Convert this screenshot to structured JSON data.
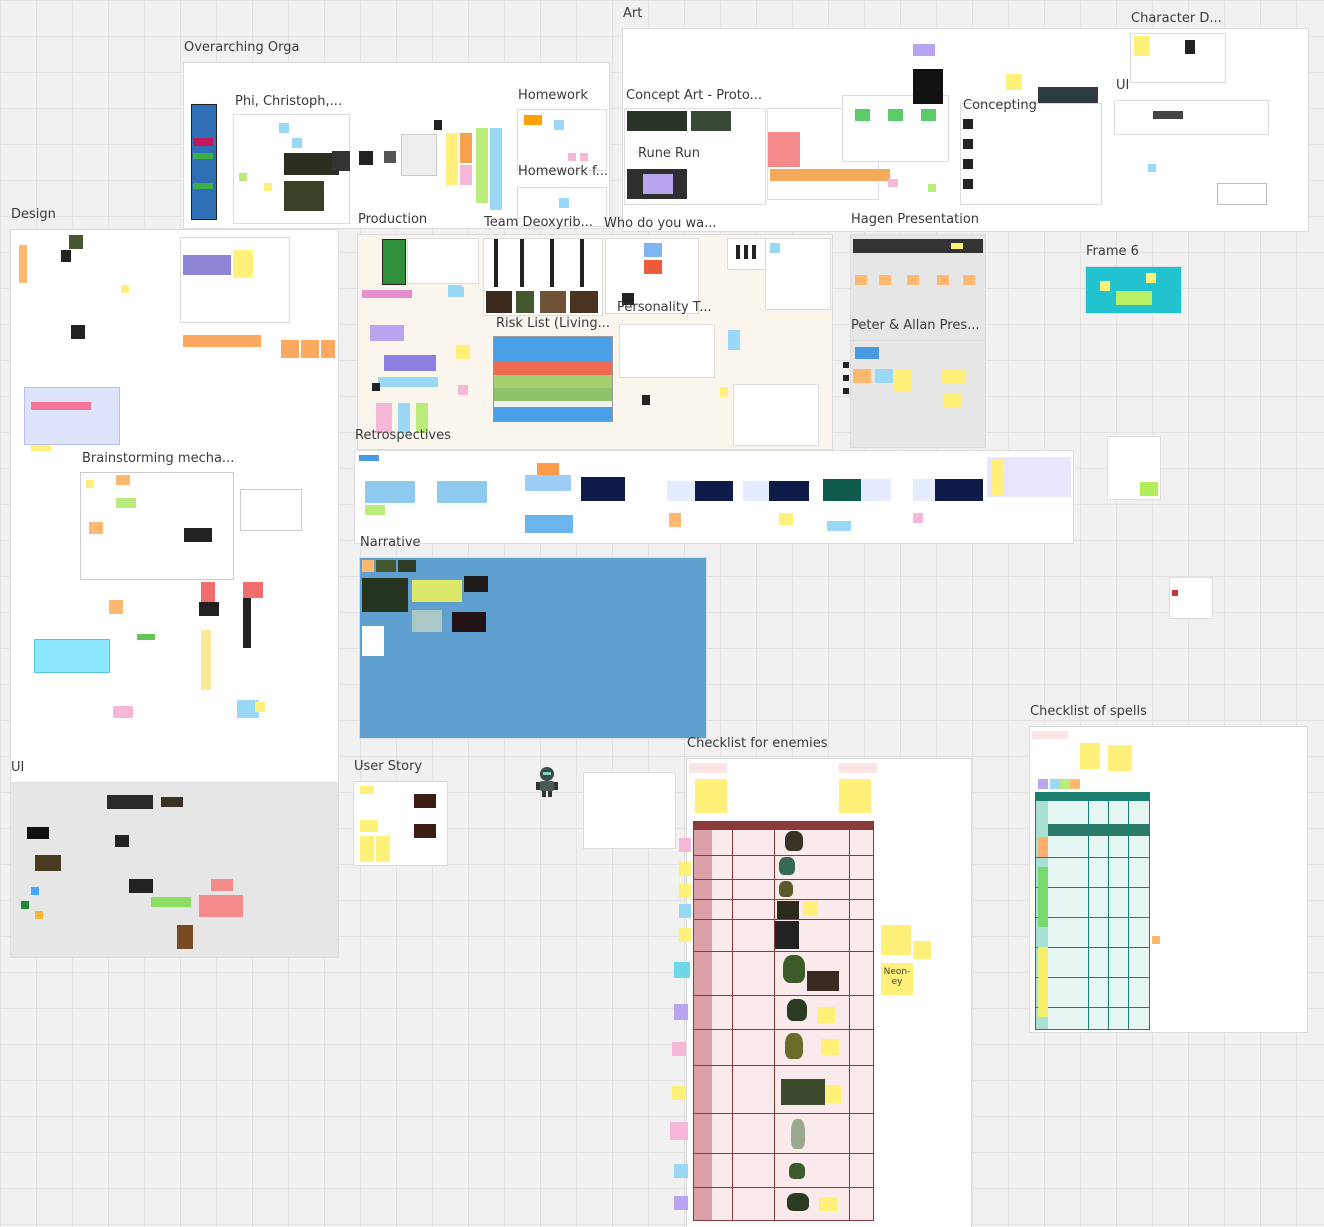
{
  "board": {
    "frames": [
      {
        "id": "overarching",
        "label": "Overarching Orga"
      },
      {
        "id": "art",
        "label": "Art"
      },
      {
        "id": "character",
        "label": "Character D..."
      },
      {
        "id": "phi",
        "label": "Phi, Christoph,..."
      },
      {
        "id": "homework",
        "label": "Homework"
      },
      {
        "id": "homework2",
        "label": "Homework f..."
      },
      {
        "id": "concept",
        "label": "Concept Art - Proto..."
      },
      {
        "id": "runerun",
        "label": "Rune Run"
      },
      {
        "id": "concepting",
        "label": "Concepting"
      },
      {
        "id": "ui-art",
        "label": "UI"
      },
      {
        "id": "design",
        "label": "Design"
      },
      {
        "id": "production",
        "label": "Production"
      },
      {
        "id": "team",
        "label": "Team Deoxyrib..."
      },
      {
        "id": "who",
        "label": "Who do you wa..."
      },
      {
        "id": "hagen",
        "label": "Hagen Presentation"
      },
      {
        "id": "frame6",
        "label": "Frame 6"
      },
      {
        "id": "personality",
        "label": "Personality T..."
      },
      {
        "id": "risk",
        "label": "Risk List (Living..."
      },
      {
        "id": "peter",
        "label": "Peter & Allan Pres..."
      },
      {
        "id": "retro",
        "label": "Retrospectives"
      },
      {
        "id": "brainstorm",
        "label": "Brainstorming mecha..."
      },
      {
        "id": "narrative",
        "label": "Narrative"
      },
      {
        "id": "checkspells",
        "label": "Checklist of spells"
      },
      {
        "id": "checkenemies",
        "label": "Checklist for enemies"
      },
      {
        "id": "ui",
        "label": "UI"
      },
      {
        "id": "userstory",
        "label": "User Story"
      }
    ],
    "stickies": {
      "neon": "Neon-\ney"
    },
    "colors": {
      "canvas": "#f1f1f1",
      "grid": "#e2e2e2",
      "frame": "#ffffff",
      "sticky_yellow": "#fff07a",
      "sticky_pink": "#f7b8d8",
      "sticky_blue": "#9ad9f5",
      "sticky_green": "#b9ec7a",
      "sticky_orange": "#ffb870",
      "sticky_purple": "#b9a4ef",
      "narrative_blue": "#5fa0d0",
      "frame6_cyan": "#22c3cf",
      "enemy_table": "#8b3a3a",
      "spell_table": "#1b7f70"
    },
    "icons": [
      "robot-figure-icon"
    ]
  }
}
